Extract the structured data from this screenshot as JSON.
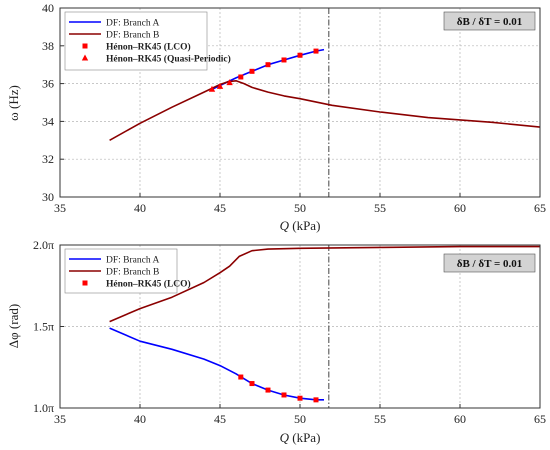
{
  "chart_data": [
    {
      "type": "line",
      "xlabel": "Q (kPa)",
      "ylabel": "ω (Hz)",
      "xlim": [
        35,
        65
      ],
      "ylim": [
        30,
        40
      ],
      "xticks": [
        35,
        40,
        45,
        50,
        55,
        60,
        65
      ],
      "yticks": [
        30,
        32,
        34,
        36,
        38,
        40
      ],
      "grid": true,
      "legend_position": "top-left",
      "annotation": "δB / δT = 0.01",
      "vline_x": 51.8,
      "series": [
        {
          "name": "DF: Branch A",
          "kind": "line",
          "color": "#0000ff",
          "x": [
            44.4,
            45,
            46,
            47,
            48,
            49,
            50,
            51,
            51.5
          ],
          "y": [
            35.65,
            35.9,
            36.3,
            36.65,
            37.0,
            37.25,
            37.5,
            37.72,
            37.8
          ]
        },
        {
          "name": "DF: Branch B",
          "kind": "line",
          "color": "#8b0000",
          "x": [
            38.1,
            40,
            42,
            44,
            45,
            45.5,
            46,
            46.5,
            47,
            48,
            49,
            50,
            52,
            55,
            58,
            62,
            65
          ],
          "y": [
            33.0,
            33.9,
            34.75,
            35.55,
            35.95,
            36.1,
            36.15,
            36.0,
            35.8,
            35.55,
            35.35,
            35.2,
            34.85,
            34.5,
            34.2,
            33.95,
            33.7
          ]
        },
        {
          "name": "Hénon–RK45 (LCO)",
          "kind": "square",
          "color": "#ff0000",
          "x": [
            46.3,
            47,
            48,
            49,
            50,
            51
          ],
          "y": [
            36.35,
            36.65,
            37.0,
            37.25,
            37.5,
            37.72
          ]
        },
        {
          "name": "Hénon–RK45 (Quasi-Periodic)",
          "kind": "triangle",
          "color": "#ff0000",
          "x": [
            44.5,
            45,
            45.6
          ],
          "y": [
            35.7,
            35.85,
            36.05
          ]
        }
      ]
    },
    {
      "type": "line",
      "xlabel": "Q (kPa)",
      "ylabel": "Δφ (rad)",
      "xlim": [
        35,
        65
      ],
      "ylim": [
        1.0,
        2.0
      ],
      "xticks": [
        35,
        40,
        45,
        50,
        55,
        60,
        65
      ],
      "yticks": [
        1.0,
        1.5,
        2.0
      ],
      "ytick_labels": [
        "1.0π",
        "1.5π",
        "2.0π"
      ],
      "grid": true,
      "legend_position": "top-left",
      "annotation": "δB / δT = 0.01",
      "vline_x": 51.8,
      "series": [
        {
          "name": "DF: Branch A",
          "kind": "line",
          "color": "#0000ff",
          "x": [
            38.1,
            40,
            42,
            44,
            45,
            46,
            47,
            48,
            49,
            50,
            51,
            51.5
          ],
          "y": [
            1.49,
            1.41,
            1.36,
            1.3,
            1.26,
            1.21,
            1.15,
            1.11,
            1.08,
            1.06,
            1.05,
            1.05
          ]
        },
        {
          "name": "DF: Branch B",
          "kind": "line",
          "color": "#8b0000",
          "x": [
            38.1,
            40,
            42,
            44,
            45,
            45.6,
            46.2,
            47,
            48,
            50,
            55,
            60,
            65
          ],
          "y": [
            1.53,
            1.61,
            1.68,
            1.77,
            1.83,
            1.87,
            1.93,
            1.965,
            1.975,
            1.98,
            1.985,
            1.99,
            1.99
          ]
        },
        {
          "name": "Hénon–RK45 (LCO)",
          "kind": "square",
          "color": "#ff0000",
          "x": [
            46.3,
            47,
            48,
            49,
            50,
            51
          ],
          "y": [
            1.19,
            1.15,
            1.11,
            1.08,
            1.06,
            1.05
          ]
        }
      ]
    }
  ]
}
